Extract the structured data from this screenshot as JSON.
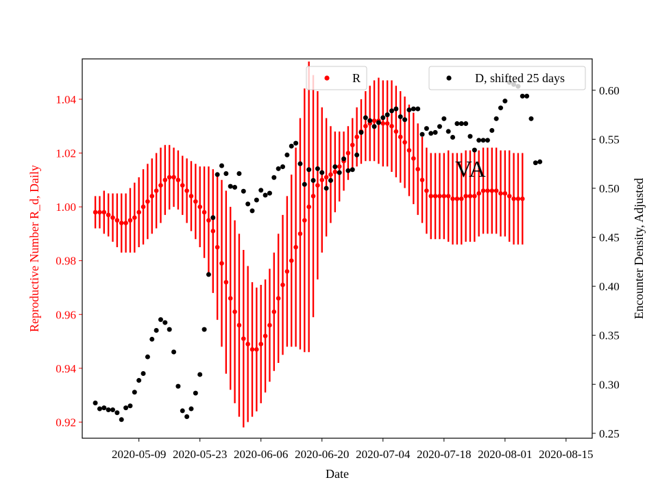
{
  "chart_data": {
    "type": "scatter",
    "xlabel": "Date",
    "x_ticks": [
      "2020-05-09",
      "2020-05-23",
      "2020-06-06",
      "2020-06-20",
      "2020-07-04",
      "2020-07-18",
      "2020-08-01",
      "2020-08-15"
    ],
    "left_axis": {
      "label": "Reproductive Number R_d, Daily",
      "color": "#ff0000",
      "ylim": [
        0.914,
        1.055
      ],
      "ticks": [
        "0.92",
        "0.94",
        "0.96",
        "0.98",
        "1.00",
        "1.02",
        "1.04"
      ]
    },
    "right_axis": {
      "label": "Encounter Density, Adjusted",
      "color": "#000000",
      "ylim": [
        0.245,
        0.632
      ],
      "ticks": [
        "0.25",
        "0.30",
        "0.35",
        "0.40",
        "0.45",
        "0.50",
        "0.55",
        "0.60"
      ]
    },
    "annotation": "VA",
    "legend_r": "R",
    "legend_d": "D, shifted 25 days",
    "legend_r_placement": "top-center",
    "legend_d_placement": "top-right",
    "r_series": {
      "name": "R",
      "color": "#ff0000",
      "start_date": "2020-04-29",
      "values": [
        0.998,
        0.998,
        0.998,
        0.997,
        0.996,
        0.995,
        0.994,
        0.994,
        0.995,
        0.996,
        0.998,
        1.0,
        1.002,
        1.004,
        1.006,
        1.008,
        1.01,
        1.011,
        1.011,
        1.01,
        1.008,
        1.006,
        1.004,
        1.002,
        1.0,
        0.998,
        0.995,
        0.991,
        0.985,
        0.979,
        0.972,
        0.966,
        0.961,
        0.956,
        0.951,
        0.949,
        0.947,
        0.947,
        0.949,
        0.952,
        0.956,
        0.961,
        0.966,
        0.971,
        0.976,
        0.98,
        0.985,
        0.99,
        0.995,
        1.0,
        1.004,
        1.008,
        1.01,
        1.011,
        1.012,
        1.013,
        1.015,
        1.017,
        1.02,
        1.023,
        1.026,
        1.028,
        1.03,
        1.031,
        1.032,
        1.032,
        1.031,
        1.031,
        1.03,
        1.028,
        1.026,
        1.024,
        1.021,
        1.018,
        1.014,
        1.01,
        1.006,
        1.004,
        1.004,
        1.004,
        1.004,
        1.004,
        1.003,
        1.003,
        1.003,
        1.004,
        1.004,
        1.004,
        1.005,
        1.006,
        1.006,
        1.006,
        1.006,
        1.005,
        1.005,
        1.004,
        1.003,
        1.003,
        1.003
      ],
      "errors": [
        0.006,
        0.006,
        0.008,
        0.008,
        0.009,
        0.01,
        0.011,
        0.011,
        0.012,
        0.013,
        0.013,
        0.014,
        0.014,
        0.014,
        0.014,
        0.014,
        0.013,
        0.012,
        0.011,
        0.011,
        0.011,
        0.012,
        0.013,
        0.014,
        0.015,
        0.017,
        0.02,
        0.023,
        0.027,
        0.031,
        0.034,
        0.034,
        0.034,
        0.034,
        0.033,
        0.029,
        0.025,
        0.023,
        0.022,
        0.021,
        0.021,
        0.022,
        0.024,
        0.026,
        0.028,
        0.032,
        0.037,
        0.043,
        0.049,
        0.054,
        0.045,
        0.035,
        0.027,
        0.022,
        0.018,
        0.015,
        0.013,
        0.011,
        0.01,
        0.01,
        0.011,
        0.012,
        0.013,
        0.014,
        0.015,
        0.016,
        0.016,
        0.016,
        0.017,
        0.017,
        0.017,
        0.017,
        0.017,
        0.017,
        0.017,
        0.016,
        0.016,
        0.016,
        0.016,
        0.016,
        0.016,
        0.017,
        0.017,
        0.017,
        0.017,
        0.017,
        0.017,
        0.017,
        0.016,
        0.016,
        0.016,
        0.016,
        0.016,
        0.016,
        0.016,
        0.017,
        0.017,
        0.017,
        0.017
      ]
    },
    "d_series": {
      "name": "D, shifted 25 days",
      "color": "#000000",
      "points": [
        [
          "2020-04-29",
          0.281
        ],
        [
          "2020-04-30",
          0.275
        ],
        [
          "2020-05-01",
          0.276
        ],
        [
          "2020-05-02",
          0.274
        ],
        [
          "2020-05-03",
          0.274
        ],
        [
          "2020-05-04",
          0.271
        ],
        [
          "2020-05-05",
          0.264
        ],
        [
          "2020-05-06",
          0.276
        ],
        [
          "2020-05-07",
          0.278
        ],
        [
          "2020-05-08",
          0.292
        ],
        [
          "2020-05-09",
          0.304
        ],
        [
          "2020-05-10",
          0.311
        ],
        [
          "2020-05-11",
          0.328
        ],
        [
          "2020-05-12",
          0.346
        ],
        [
          "2020-05-13",
          0.355
        ],
        [
          "2020-05-14",
          0.366
        ],
        [
          "2020-05-15",
          0.363
        ],
        [
          "2020-05-16",
          0.356
        ],
        [
          "2020-05-17",
          0.333
        ],
        [
          "2020-05-18",
          0.298
        ],
        [
          "2020-05-19",
          0.273
        ],
        [
          "2020-05-20",
          0.267
        ],
        [
          "2020-05-21",
          0.275
        ],
        [
          "2020-05-22",
          0.291
        ],
        [
          "2020-05-23",
          0.31
        ],
        [
          "2020-05-24",
          0.356
        ],
        [
          "2020-05-25",
          0.412
        ],
        [
          "2020-05-26",
          0.47
        ],
        [
          "2020-05-27",
          0.514
        ],
        [
          "2020-05-28",
          0.523
        ],
        [
          "2020-05-29",
          0.515
        ],
        [
          "2020-05-30",
          0.502
        ],
        [
          "2020-05-31",
          0.501
        ],
        [
          "2020-06-01",
          0.515
        ],
        [
          "2020-06-02",
          0.497
        ],
        [
          "2020-06-03",
          0.484
        ],
        [
          "2020-06-04",
          0.477
        ],
        [
          "2020-06-05",
          0.488
        ],
        [
          "2020-06-06",
          0.498
        ],
        [
          "2020-06-07",
          0.493
        ],
        [
          "2020-06-08",
          0.495
        ],
        [
          "2020-06-09",
          0.511
        ],
        [
          "2020-06-10",
          0.52
        ],
        [
          "2020-06-11",
          0.522
        ],
        [
          "2020-06-12",
          0.534
        ],
        [
          "2020-06-13",
          0.543
        ],
        [
          "2020-06-14",
          0.546
        ],
        [
          "2020-06-15",
          0.525
        ],
        [
          "2020-06-16",
          0.504
        ],
        [
          "2020-06-17",
          0.519
        ],
        [
          "2020-06-18",
          0.508
        ],
        [
          "2020-06-19",
          0.52
        ],
        [
          "2020-06-20",
          0.516
        ],
        [
          "2020-06-21",
          0.5
        ],
        [
          "2020-06-22",
          0.508
        ],
        [
          "2020-06-23",
          0.522
        ],
        [
          "2020-06-24",
          0.516
        ],
        [
          "2020-06-25",
          0.53
        ],
        [
          "2020-06-26",
          0.518
        ],
        [
          "2020-06-27",
          0.519
        ],
        [
          "2020-06-28",
          0.534
        ],
        [
          "2020-06-29",
          0.557
        ],
        [
          "2020-06-30",
          0.572
        ],
        [
          "2020-07-01",
          0.569
        ],
        [
          "2020-07-02",
          0.563
        ],
        [
          "2020-07-03",
          0.567
        ],
        [
          "2020-07-04",
          0.572
        ],
        [
          "2020-07-05",
          0.575
        ],
        [
          "2020-07-06",
          0.579
        ],
        [
          "2020-07-07",
          0.581
        ],
        [
          "2020-07-08",
          0.573
        ],
        [
          "2020-07-09",
          0.57
        ],
        [
          "2020-07-10",
          0.58
        ],
        [
          "2020-07-11",
          0.581
        ],
        [
          "2020-07-12",
          0.581
        ],
        [
          "2020-07-13",
          0.555
        ],
        [
          "2020-07-14",
          0.561
        ],
        [
          "2020-07-15",
          0.556
        ],
        [
          "2020-07-16",
          0.557
        ],
        [
          "2020-07-17",
          0.563
        ],
        [
          "2020-07-18",
          0.571
        ],
        [
          "2020-07-19",
          0.558
        ],
        [
          "2020-07-20",
          0.552
        ],
        [
          "2020-07-21",
          0.566
        ],
        [
          "2020-07-22",
          0.566
        ],
        [
          "2020-07-23",
          0.566
        ],
        [
          "2020-07-24",
          0.553
        ],
        [
          "2020-07-25",
          0.539
        ],
        [
          "2020-07-26",
          0.549
        ],
        [
          "2020-07-27",
          0.549
        ],
        [
          "2020-07-28",
          0.549
        ],
        [
          "2020-07-29",
          0.559
        ],
        [
          "2020-07-30",
          0.571
        ],
        [
          "2020-07-31",
          0.582
        ],
        [
          "2020-08-01",
          0.589
        ],
        [
          "2020-08-02",
          0.608
        ],
        [
          "2020-08-03",
          0.606
        ],
        [
          "2020-08-04",
          0.604
        ],
        [
          "2020-08-05",
          0.594
        ],
        [
          "2020-08-06",
          0.594
        ],
        [
          "2020-08-07",
          0.571
        ],
        [
          "2020-08-08",
          0.526
        ],
        [
          "2020-08-09",
          0.527
        ]
      ]
    }
  }
}
